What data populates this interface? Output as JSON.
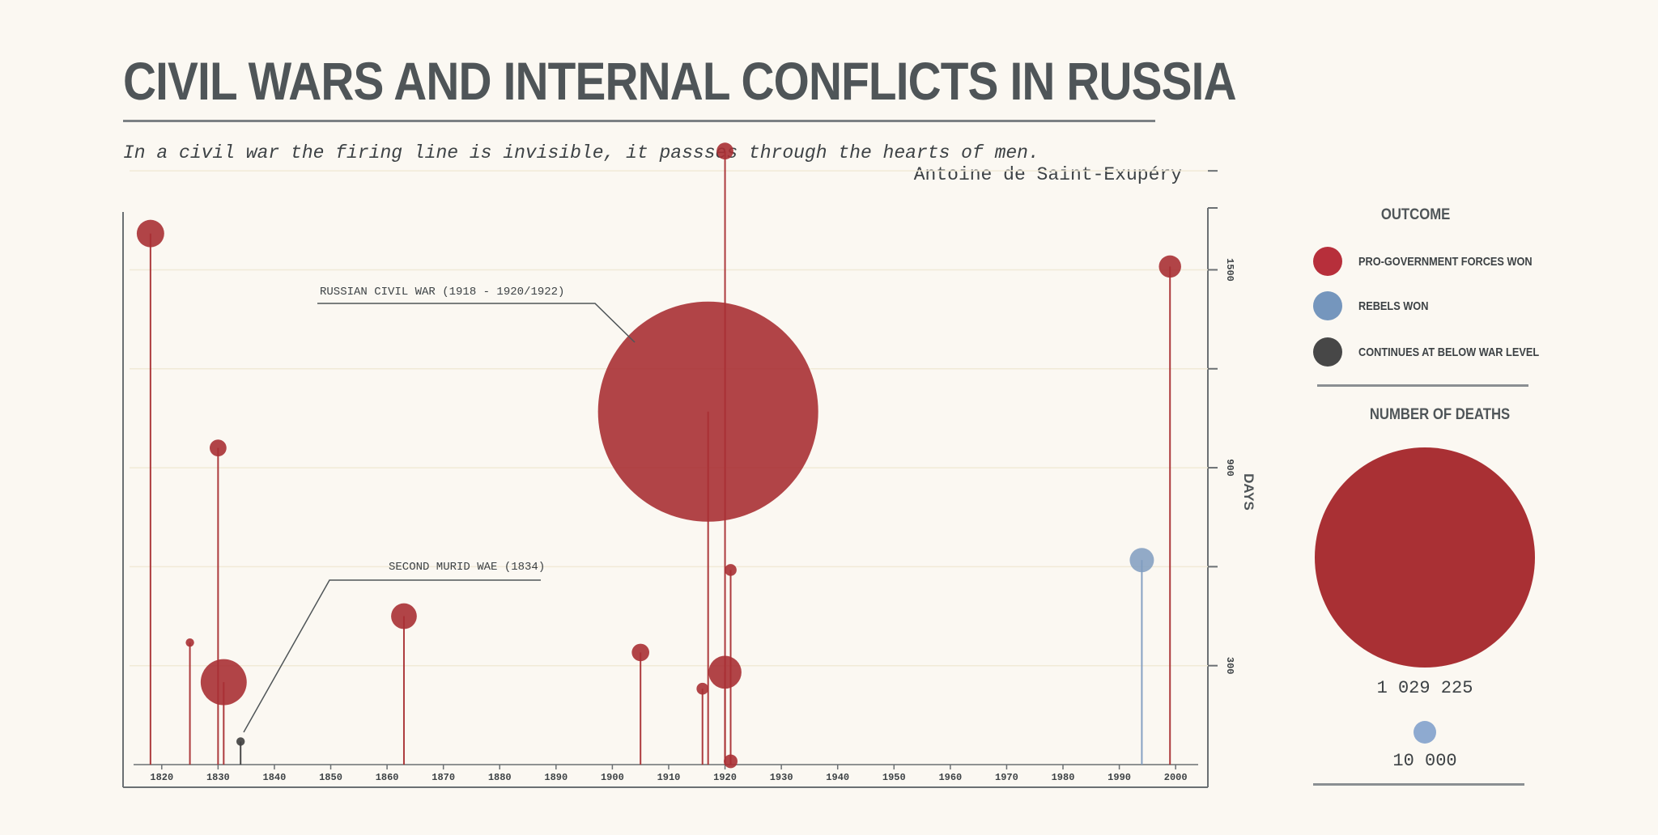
{
  "title": "CIVIL WARS AND INTERNAL CONFLICTS IN RUSSIA",
  "quote": "In a civil war the firing line is invisible, it passses through the hearts of men.",
  "quote_author": "Antoine de Saint-Exupéry",
  "colors": {
    "pro_government": "#a93034",
    "rebels": "#7f9cc0",
    "continues": "#3f3f3f",
    "text": "#4f5558",
    "axis": "#555a5d"
  },
  "legend": {
    "outcome_title": "OUTCOME",
    "outcome_items": [
      {
        "label": "PRO-GOVERNMENT FORCES WON",
        "color": "#b72f3b"
      },
      {
        "label": "REBELS WON",
        "color": "#7596bd"
      },
      {
        "label": "CONTINUES AT BELOW WAR LEVEL",
        "color": "#474747"
      }
    ],
    "deaths_title": "NUMBER OF DEATHS",
    "deaths_large": "1 029 225",
    "deaths_small": "10 000"
  },
  "chart_data": {
    "type": "scatter",
    "title": "",
    "xlabel": "",
    "ylabel": "DAYS",
    "xlim": [
      1815,
      2004
    ],
    "ylim": [
      0,
      1820
    ],
    "x_ticks": [
      1820,
      1830,
      1840,
      1850,
      1860,
      1870,
      1880,
      1890,
      1900,
      1910,
      1920,
      1930,
      1940,
      1950,
      1960,
      1970,
      1980,
      1990,
      2000
    ],
    "y_ticks": [
      300,
      600,
      900,
      1200,
      1500,
      1800
    ],
    "y_tick_labels": [
      "300",
      "",
      "900",
      "",
      "1500",
      ""
    ],
    "grid": true,
    "size_meaning": "Number of deaths",
    "points": [
      {
        "year": 1818,
        "days": 1610,
        "deaths": 16000,
        "outcome": "pro_government"
      },
      {
        "year": 1825,
        "days": 370,
        "deaths": 1500,
        "outcome": "pro_government"
      },
      {
        "year": 1830,
        "days": 960,
        "deaths": 6000,
        "outcome": "pro_government"
      },
      {
        "year": 1831,
        "days": 250,
        "deaths": 45000,
        "outcome": "pro_government"
      },
      {
        "year": 1834,
        "days": 70,
        "deaths": 1500,
        "outcome": "continues"
      },
      {
        "year": 1863,
        "days": 450,
        "deaths": 14000,
        "outcome": "pro_government"
      },
      {
        "year": 1905,
        "days": 340,
        "deaths": 6500,
        "outcome": "pro_government"
      },
      {
        "year": 1916,
        "days": 230,
        "deaths": 3000,
        "outcome": "pro_government"
      },
      {
        "year": 1917,
        "days": 1070,
        "deaths": 1029225,
        "outcome": "pro_government"
      },
      {
        "year": 1920,
        "days": 1860,
        "deaths": 6000,
        "outcome": "pro_government"
      },
      {
        "year": 1920,
        "days": 280,
        "deaths": 23000,
        "outcome": "pro_government"
      },
      {
        "year": 1921,
        "days": 590,
        "deaths": 3000,
        "outcome": "pro_government"
      },
      {
        "year": 1921,
        "days": 10,
        "deaths": 4000,
        "outcome": "pro_government"
      },
      {
        "year": 1994,
        "days": 620,
        "deaths": 12500,
        "outcome": "rebels"
      },
      {
        "year": 1999,
        "days": 1510,
        "deaths": 10500,
        "outcome": "pro_government"
      }
    ],
    "annotations": [
      {
        "text": "RUSSIAN CIVIL WAR (1918 - 1920/1922)"
      },
      {
        "text": "SECOND MURID WAE (1834)"
      }
    ]
  }
}
